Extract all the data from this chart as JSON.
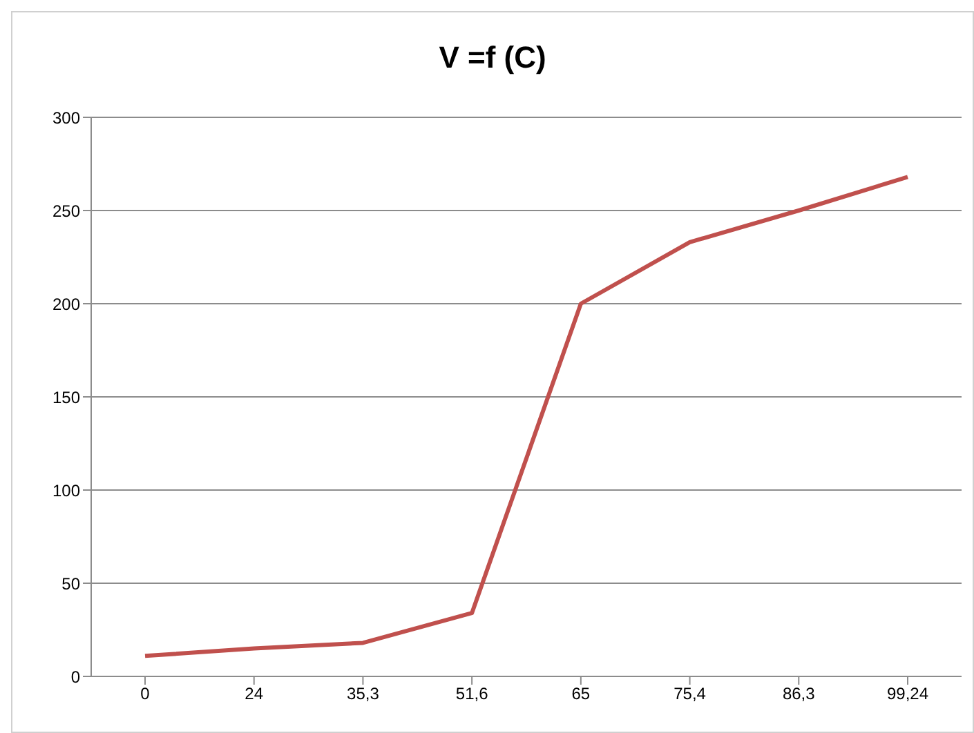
{
  "chart_data": {
    "type": "line",
    "title": "V =f (C)",
    "categories": [
      "0",
      "24",
      "35,3",
      "51,6",
      "65",
      "75,4",
      "86,3",
      "99,24"
    ],
    "series": [
      {
        "color": "#c0504d",
        "values": [
          11,
          15,
          18,
          34,
          200,
          233,
          250,
          268
        ]
      }
    ],
    "ylim": [
      0,
      300
    ],
    "yticks": [
      0,
      50,
      100,
      150,
      200,
      250,
      300
    ],
    "grid": "y",
    "marker": "none",
    "line_style": "solid"
  }
}
